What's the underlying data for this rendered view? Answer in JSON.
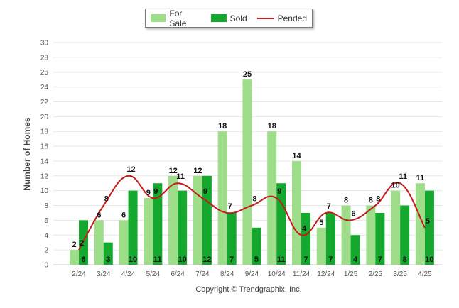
{
  "legend": {
    "items": [
      {
        "label": "For Sale",
        "color": "#9edd8a",
        "kind": "bar"
      },
      {
        "label": "Sold",
        "color": "#14a82e",
        "kind": "bar"
      },
      {
        "label": "Pended",
        "color": "#c41a1a",
        "kind": "line"
      }
    ]
  },
  "footer": {
    "copyright": "Copyright © Trendgraphix, Inc."
  },
  "chart_data": {
    "type": "bar",
    "ylabel": "Number of Homes",
    "xlabel": "",
    "ylim": [
      0,
      30
    ],
    "yticks": [
      0,
      2,
      4,
      6,
      8,
      10,
      12,
      14,
      16,
      18,
      20,
      22,
      24,
      26,
      28,
      30
    ],
    "grid": true,
    "legend_position": "top-center",
    "categories": [
      "2/24",
      "3/24",
      "4/24",
      "5/24",
      "6/24",
      "7/24",
      "8/24",
      "9/24",
      "10/24",
      "11/24",
      "12/24",
      "1/25",
      "2/25",
      "3/25",
      "4/25"
    ],
    "series": [
      {
        "name": "For Sale",
        "type": "bar",
        "color": "#9edd8a",
        "values": [
          2,
          6,
          6,
          9,
          12,
          12,
          18,
          25,
          18,
          14,
          5,
          8,
          8,
          10,
          11
        ]
      },
      {
        "name": "Sold",
        "type": "bar",
        "color": "#14a82e",
        "values": [
          6,
          3,
          10,
          11,
          10,
          12,
          7,
          5,
          11,
          7,
          7,
          4,
          7,
          8,
          10
        ]
      },
      {
        "name": "Pended",
        "type": "line",
        "color": "#c41a1a",
        "values": [
          2,
          8,
          12,
          9,
          11,
          9,
          7,
          8,
          9,
          4,
          7,
          6,
          8,
          11,
          5
        ]
      }
    ]
  }
}
